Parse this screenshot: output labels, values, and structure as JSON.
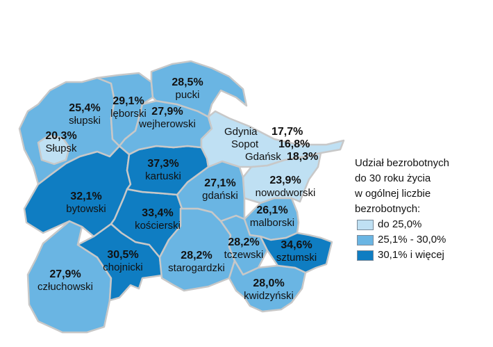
{
  "colors": {
    "low": "#bfe0f3",
    "mid": "#6ab5e3",
    "high": "#0f7dc2",
    "border": "#c8c8c8"
  },
  "districts": [
    {
      "name": "pucki",
      "value": "28,5%",
      "class": "mid"
    },
    {
      "name": "lęborski",
      "value": "29,1%",
      "class": "mid"
    },
    {
      "name": "wejherowski",
      "value": "27,9%",
      "class": "mid"
    },
    {
      "name": "słupski",
      "value": "25,4%",
      "class": "mid"
    },
    {
      "name": "Słupsk",
      "value": "20,3%",
      "class": "low"
    },
    {
      "name": "kartuski",
      "value": "37,3%",
      "class": "high"
    },
    {
      "name": "gdański",
      "value": "27,1%",
      "class": "mid"
    },
    {
      "name": "nowodworski",
      "value": "23,9%",
      "class": "low"
    },
    {
      "name": "bytowski",
      "value": "32,1%",
      "class": "high"
    },
    {
      "name": "kościerski",
      "value": "33,4%",
      "class": "high"
    },
    {
      "name": "malborski",
      "value": "26,1%",
      "class": "mid"
    },
    {
      "name": "tczewski",
      "value": "28,2%",
      "class": "mid"
    },
    {
      "name": "sztumski",
      "value": "34,6%",
      "class": "high"
    },
    {
      "name": "chojnicki",
      "value": "30,5%",
      "class": "high"
    },
    {
      "name": "starogardzki",
      "value": "28,2%",
      "class": "mid"
    },
    {
      "name": "człuchowski",
      "value": "27,9%",
      "class": "mid"
    },
    {
      "name": "kwidzyński",
      "value": "28,0%",
      "class": "mid"
    }
  ],
  "cities": [
    {
      "name": "Gdynia",
      "value": "17,7%"
    },
    {
      "name": "Sopot",
      "value": "16,8%"
    },
    {
      "name": "Gdańsk",
      "value": "18,3%"
    }
  ],
  "legend": {
    "title": [
      "Udział bezrobotnych",
      "do 30 roku życia",
      "w ogólnej liczbie",
      "bezrobotnych:"
    ],
    "items": [
      {
        "label": "do 25,0%",
        "class": "low"
      },
      {
        "label": "25,1% - 30,0%",
        "class": "mid"
      },
      {
        "label": "30,1% i więcej",
        "class": "high"
      }
    ]
  }
}
